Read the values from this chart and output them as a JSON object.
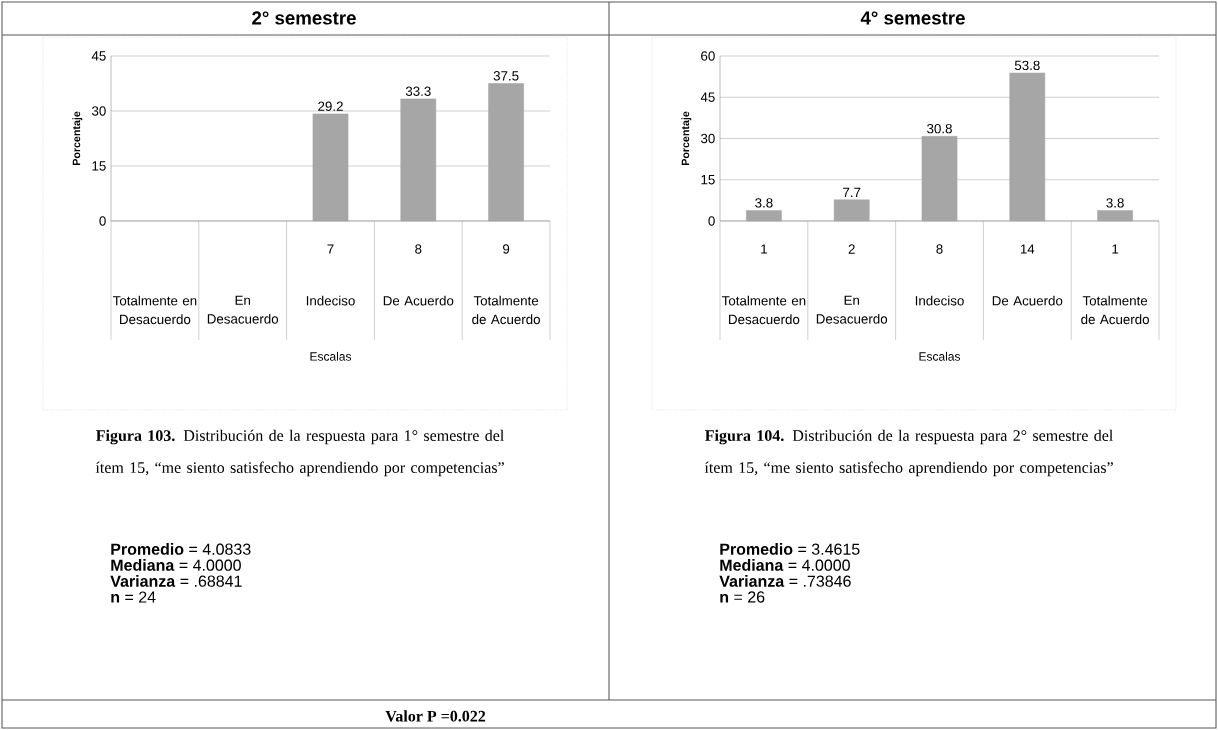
{
  "chart_data": [
    {
      "type": "bar",
      "title": "2° semestre",
      "xlabel": "Escalas",
      "ylabel": "Porcentaje",
      "categories": [
        "Totalmente en Desacuerdo",
        "En Desacuerdo",
        "Indeciso",
        "De Acuerdo",
        "Totalmente de Acuerdo"
      ],
      "values": [
        null,
        null,
        29.2,
        33.3,
        37.5
      ],
      "data_labels": true,
      "color": "#a6a6a6",
      "ylim": [
        0,
        45
      ],
      "yticks": [
        0,
        15,
        30,
        45
      ],
      "grid": "y",
      "annotations": [
        "7",
        "8",
        "9",
        "**Figura 103.** Distribución de la respuesta para 1° semestre del ítem 15, “me siento satisfecho aprendiendo por competencias”",
        "**Promedio** = 4.0833",
        "**Mediana** = 4.0000",
        "**Varianza** =  .68841",
        "**n** = 24",
        "**Valor P =0.022**"
      ]
    },
    {
      "type": "bar",
      "title": "4° semestre",
      "xlabel": "Escalas",
      "ylabel": "Porcentaje",
      "categories": [
        "Totalmente en Desacuerdo",
        "En Desacuerdo",
        "Indeciso",
        "De Acuerdo",
        "Totalmente de Acuerdo"
      ],
      "values": [
        3.8,
        7.7,
        30.8,
        53.8,
        3.8
      ],
      "data_labels": true,
      "color": "#a6a6a6",
      "ylim": [
        0,
        60
      ],
      "yticks": [
        0,
        15,
        30,
        45,
        60
      ],
      "grid": "y",
      "annotations": [
        "1",
        "2",
        "8",
        "14",
        "1",
        "**Figura 104.** Distribución de la respuesta para 2° semestre del ítem 15, “me siento satisfecho aprendiendo por competencias”",
        "**Promedio** = 3.4615",
        "**Mediana** = 4.0000",
        "**Varianza** =  .73846",
        "**n** = 26"
      ]
    }
  ]
}
